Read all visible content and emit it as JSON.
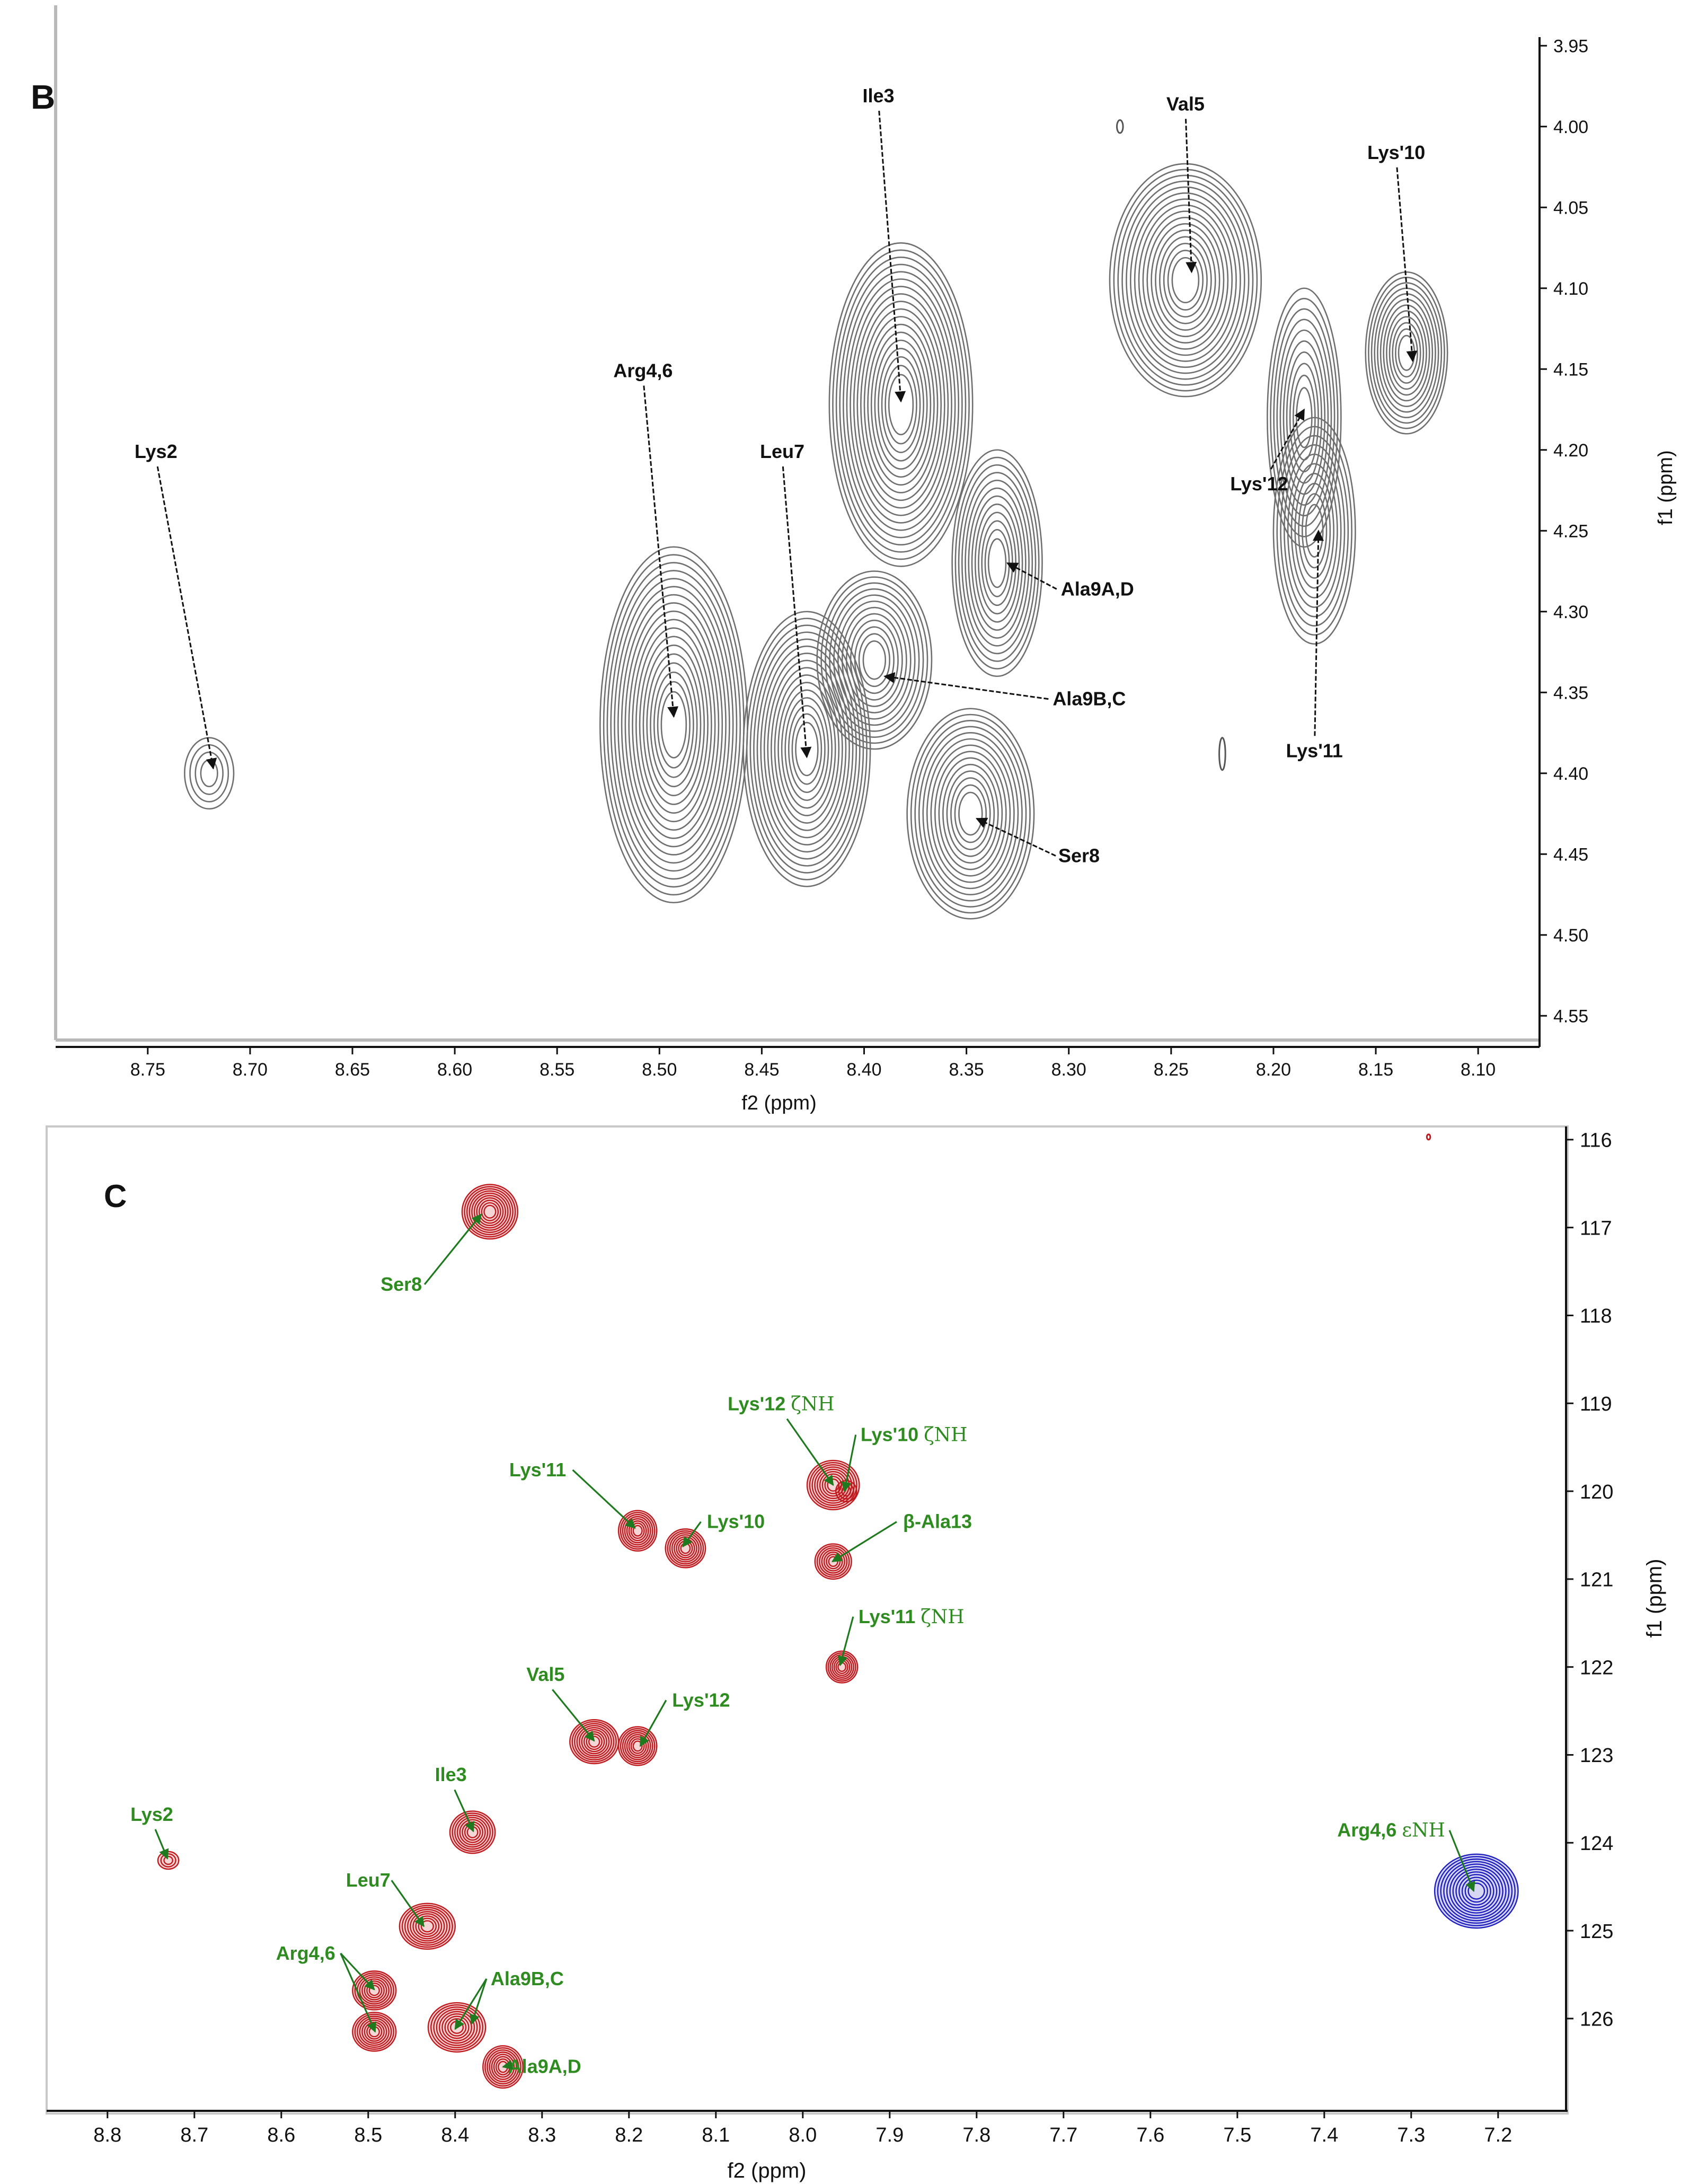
{
  "panels": [
    {
      "id": "B",
      "panel_label": "B",
      "xlabel": "f2 (ppm)",
      "ylabel": "f1 (ppm)",
      "xlim": [
        8.795,
        8.07
      ],
      "ylim": [
        3.925,
        4.565
      ],
      "xticks": [
        "8.75",
        "8.70",
        "8.65",
        "8.60",
        "8.55",
        "8.50",
        "8.45",
        "8.40",
        "8.35",
        "8.30",
        "8.25",
        "8.20",
        "8.15",
        "8.10"
      ],
      "yticks": [
        "3.95",
        "4.00",
        "4.05",
        "4.10",
        "4.15",
        "4.20",
        "4.25",
        "4.30",
        "4.35",
        "4.40",
        "4.45",
        "4.50",
        "4.55"
      ],
      "colors": {
        "contour": "#6f6f6f",
        "arrow": "#111111",
        "text": "#111111"
      }
    },
    {
      "id": "C",
      "panel_label": "C",
      "xlabel": "f2 (ppm)",
      "ylabel": "f1 (ppm)",
      "xlim": [
        8.87,
        7.12
      ],
      "ylim": [
        115.85,
        127.05
      ],
      "xticks": [
        "8.8",
        "8.7",
        "8.6",
        "8.5",
        "8.4",
        "8.3",
        "8.2",
        "8.1",
        "8.0",
        "7.9",
        "7.8",
        "7.7",
        "7.6",
        "7.5",
        "7.4",
        "7.3",
        "7.2"
      ],
      "yticks": [
        "116",
        "117",
        "118",
        "119",
        "120",
        "121",
        "122",
        "123",
        "124",
        "125",
        "126"
      ],
      "colors": {
        "positive": "#c0191e",
        "negative": "#1f1fc0",
        "label": "#2e8b1f",
        "arrow": "#1f7a1f"
      }
    }
  ],
  "chart_data": [
    {
      "type": "scatter",
      "title": "B",
      "xlabel": "f2 (ppm)",
      "ylabel": "f1 (ppm)",
      "xlim": [
        8.795,
        8.07
      ],
      "ylim": [
        4.565,
        3.925
      ],
      "peaks": [
        {
          "name": "Lys2",
          "label": "Lys2",
          "x": 8.72,
          "y": 4.4,
          "rx": 0.012,
          "ry": 0.022,
          "n": 4
        },
        {
          "name": "Arg4,6",
          "label": "Arg4,6",
          "x": 8.493,
          "y": 4.37,
          "rx": 0.036,
          "ry": 0.11,
          "n": 18
        },
        {
          "name": "Leu7",
          "label": "Leu7",
          "x": 8.428,
          "y": 4.385,
          "rx": 0.031,
          "ry": 0.085,
          "n": 16
        },
        {
          "name": "Ile3",
          "label": "Ile3",
          "x": 8.382,
          "y": 4.172,
          "rx": 0.035,
          "ry": 0.1,
          "n": 18
        },
        {
          "name": "Ala9B,C",
          "label": "Ala9B,C",
          "x": 8.395,
          "y": 4.33,
          "rx": 0.028,
          "ry": 0.055,
          "n": 12
        },
        {
          "name": "Ser8",
          "label": "Ser8",
          "x": 8.348,
          "y": 4.425,
          "rx": 0.031,
          "ry": 0.065,
          "n": 14
        },
        {
          "name": "Ala9A,D",
          "label": "Ala9A,D",
          "x": 8.335,
          "y": 4.27,
          "rx": 0.022,
          "ry": 0.07,
          "n": 12
        },
        {
          "name": "Val5",
          "label": "Val5",
          "x": 8.243,
          "y": 4.095,
          "rx": 0.037,
          "ry": 0.072,
          "n": 16
        },
        {
          "name": "Lys'12",
          "label": "Lys'12",
          "x": 8.185,
          "y": 4.18,
          "rx": 0.018,
          "ry": 0.08,
          "n": 10
        },
        {
          "name": "Lys'11",
          "label": "Lys'11",
          "x": 8.18,
          "y": 4.25,
          "rx": 0.02,
          "ry": 0.07,
          "n": 10
        },
        {
          "name": "Lys'10",
          "label": "Lys'10",
          "x": 8.135,
          "y": 4.14,
          "rx": 0.02,
          "ry": 0.05,
          "n": 12
        }
      ],
      "annotations": [
        {
          "label": "Lys2",
          "tx": 8.746,
          "ty": 4.205,
          "ax": 8.718,
          "ay": 4.397
        },
        {
          "label": "Arg4,6",
          "tx": 8.508,
          "ty": 4.155,
          "ax": 8.493,
          "ay": 4.365
        },
        {
          "label": "Leu7",
          "tx": 8.44,
          "ty": 4.205,
          "ax": 8.428,
          "ay": 4.39
        },
        {
          "label": "Ile3",
          "tx": 8.393,
          "ty": 3.985,
          "ax": 8.382,
          "ay": 4.17
        },
        {
          "label": "Ala9B,C",
          "tx": 8.29,
          "ty": 4.358,
          "ax": 8.39,
          "ay": 4.34
        },
        {
          "label": "Ser8",
          "tx": 8.295,
          "ty": 4.455,
          "ax": 8.345,
          "ay": 4.428
        },
        {
          "label": "Ala9A,D",
          "tx": 8.286,
          "ty": 4.29,
          "ax": 8.33,
          "ay": 4.27
        },
        {
          "label": "Val5",
          "tx": 8.243,
          "ty": 3.99,
          "ax": 8.24,
          "ay": 4.09
        },
        {
          "label": "Lys'10",
          "tx": 8.14,
          "ty": 4.02,
          "ax": 8.132,
          "ay": 4.145
        },
        {
          "label": "Lys'12",
          "tx": 8.207,
          "ty": 4.225,
          "ax": 8.185,
          "ay": 4.175
        },
        {
          "label": "Lys'11",
          "tx": 8.18,
          "ty": 4.39,
          "ax": 8.178,
          "ay": 4.25
        }
      ],
      "artifacts": [
        {
          "x": 8.275,
          "y": 4.0,
          "rx": 0.0015,
          "ry": 0.004
        },
        {
          "x": 8.225,
          "y": 4.388,
          "rx": 0.0015,
          "ry": 0.01
        }
      ]
    },
    {
      "type": "scatter",
      "title": "C",
      "xlabel": "f2 (ppm)",
      "ylabel": "f1 (ppm)",
      "xlim": [
        8.87,
        7.12
      ],
      "ylim": [
        127.05,
        115.85
      ],
      "peaks": [
        {
          "name": "Ser8",
          "x": 8.36,
          "y": 116.82,
          "rx": 0.032,
          "ry": 0.31,
          "n": 10,
          "sign": "positive"
        },
        {
          "name": "Lys'12 ζNH",
          "x": 7.965,
          "y": 119.93,
          "rx": 0.03,
          "ry": 0.28,
          "n": 9,
          "sign": "positive"
        },
        {
          "name": "Lys'10 ζNH",
          "x": 7.95,
          "y": 120.0,
          "rx": 0.012,
          "ry": 0.12,
          "n": 3,
          "sign": "positive"
        },
        {
          "name": "Lys'11",
          "x": 8.19,
          "y": 120.45,
          "rx": 0.022,
          "ry": 0.23,
          "n": 8,
          "sign": "positive"
        },
        {
          "name": "Lys'10",
          "x": 8.135,
          "y": 120.65,
          "rx": 0.023,
          "ry": 0.22,
          "n": 8,
          "sign": "positive"
        },
        {
          "name": "β-Ala13",
          "x": 7.965,
          "y": 120.8,
          "rx": 0.021,
          "ry": 0.2,
          "n": 7,
          "sign": "positive"
        },
        {
          "name": "Lys'11 ζNH",
          "x": 7.955,
          "y": 122.0,
          "rx": 0.018,
          "ry": 0.18,
          "n": 7,
          "sign": "positive"
        },
        {
          "name": "Val5",
          "x": 8.24,
          "y": 122.85,
          "rx": 0.028,
          "ry": 0.25,
          "n": 9,
          "sign": "positive"
        },
        {
          "name": "Lys'12",
          "x": 8.19,
          "y": 122.9,
          "rx": 0.022,
          "ry": 0.22,
          "n": 8,
          "sign": "positive"
        },
        {
          "name": "Ile3",
          "x": 8.38,
          "y": 123.88,
          "rx": 0.026,
          "ry": 0.24,
          "n": 8,
          "sign": "positive"
        },
        {
          "name": "Lys2",
          "x": 8.73,
          "y": 124.2,
          "rx": 0.012,
          "ry": 0.1,
          "n": 3,
          "sign": "positive"
        },
        {
          "name": "Leu7",
          "x": 8.432,
          "y": 124.95,
          "rx": 0.032,
          "ry": 0.26,
          "n": 9,
          "sign": "positive"
        },
        {
          "name": "Arg4,6 a",
          "x": 8.493,
          "y": 125.68,
          "rx": 0.025,
          "ry": 0.22,
          "n": 8,
          "sign": "positive"
        },
        {
          "name": "Arg4,6 b",
          "x": 8.493,
          "y": 126.15,
          "rx": 0.025,
          "ry": 0.22,
          "n": 8,
          "sign": "positive"
        },
        {
          "name": "Ala9B,C",
          "x": 8.398,
          "y": 126.1,
          "rx": 0.033,
          "ry": 0.28,
          "n": 9,
          "sign": "positive"
        },
        {
          "name": "Ala9A,D",
          "x": 8.345,
          "y": 126.55,
          "rx": 0.023,
          "ry": 0.24,
          "n": 8,
          "sign": "positive"
        },
        {
          "name": "Arg4,6 εNH",
          "x": 7.225,
          "y": 124.55,
          "rx": 0.048,
          "ry": 0.42,
          "n": 12,
          "sign": "negative"
        }
      ],
      "annotations": [
        {
          "label": "Ser8",
          "tx": 8.462,
          "ty": 117.72,
          "ax": 8.37,
          "ay": 116.85
        },
        {
          "label": "Lys'12 ζNH",
          "tx": 8.025,
          "ty": 119.08,
          "ax": 7.965,
          "ay": 119.93
        },
        {
          "label": "Lys'10 ζNH",
          "tx": 7.872,
          "ty": 119.43,
          "ax": 7.952,
          "ay": 120.0
        },
        {
          "label": "Lys'11",
          "tx": 8.305,
          "ty": 119.83,
          "ax": 8.193,
          "ay": 120.42
        },
        {
          "label": "Lys'10",
          "tx": 8.077,
          "ty": 120.42,
          "ax": 8.138,
          "ay": 120.63
        },
        {
          "label": "β-Ala13",
          "tx": 7.845,
          "ty": 120.42,
          "ax": 7.966,
          "ay": 120.8
        },
        {
          "label": "Lys'11 ζNH",
          "tx": 7.875,
          "ty": 121.5,
          "ax": 7.957,
          "ay": 121.98
        },
        {
          "label": "Val5",
          "tx": 8.296,
          "ty": 122.16,
          "ax": 8.24,
          "ay": 122.84
        },
        {
          "label": "Lys'12",
          "tx": 8.117,
          "ty": 122.45,
          "ax": 8.187,
          "ay": 122.9
        },
        {
          "label": "Ile3",
          "tx": 8.405,
          "ty": 123.3,
          "ax": 8.379,
          "ay": 123.87
        },
        {
          "label": "Lys2",
          "tx": 8.749,
          "ty": 123.75,
          "ax": 8.731,
          "ay": 124.18
        },
        {
          "label": "Leu7",
          "tx": 8.5,
          "ty": 124.5,
          "ax": 8.436,
          "ay": 124.95
        },
        {
          "label": "Arg4,6",
          "tx": 8.572,
          "ty": 125.33,
          "ax": 8.493,
          "ay": 125.67
        },
        {
          "label": "Arg4,6",
          "tx": 8.572,
          "ty": 125.33,
          "ax": 8.492,
          "ay": 126.15
        },
        {
          "label": "Ala9B,C",
          "tx": 8.317,
          "ty": 125.62,
          "ax": 8.4,
          "ay": 126.12
        },
        {
          "label": "Ala9B,C",
          "tx": 8.317,
          "ty": 125.62,
          "ax": 8.381,
          "ay": 126.06
        },
        {
          "label": "Ala9A,D",
          "tx": 8.297,
          "ty": 126.62,
          "ax": 8.345,
          "ay": 126.55
        },
        {
          "label": "Arg4,6 εNH",
          "tx": 7.323,
          "ty": 123.93,
          "ax": 7.228,
          "ay": 124.55
        }
      ],
      "artifacts": [
        {
          "x": 7.28,
          "y": 115.97,
          "rx": 0.002,
          "ry": 0.03
        }
      ]
    }
  ]
}
